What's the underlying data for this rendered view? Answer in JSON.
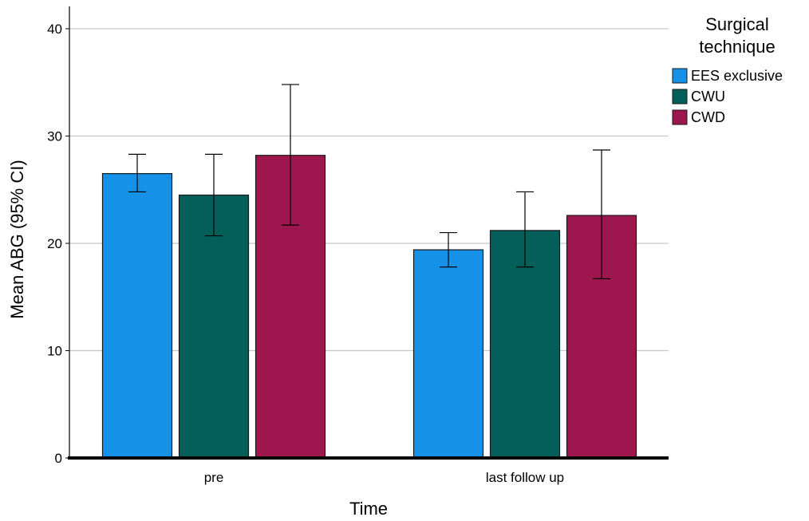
{
  "chart_data": {
    "type": "bar",
    "xlabel": "Time",
    "ylabel": "Mean ABG (95% CI)",
    "categories": [
      "pre",
      "last follow up"
    ],
    "ylim": [
      0,
      42
    ],
    "yticks": [
      "0",
      "10",
      "20",
      "30",
      "40"
    ],
    "grid": true,
    "legend": {
      "title_lines": [
        "Surgical",
        "technique"
      ],
      "placement": "right"
    },
    "series": [
      {
        "name": "EES exclusive",
        "color": "#1591E7",
        "values": [
          26.5,
          19.4
        ],
        "ci_low": [
          24.8,
          17.8
        ],
        "ci_high": [
          28.3,
          21.0
        ]
      },
      {
        "name": "CWU",
        "color": "#045E5A",
        "values": [
          24.5,
          21.2
        ],
        "ci_low": [
          20.7,
          17.8
        ],
        "ci_high": [
          28.3,
          24.8
        ]
      },
      {
        "name": "CWD",
        "color": "#9D174E",
        "values": [
          28.2,
          22.6
        ],
        "ci_low": [
          21.7,
          16.7
        ],
        "ci_high": [
          34.8,
          28.7
        ]
      }
    ]
  }
}
